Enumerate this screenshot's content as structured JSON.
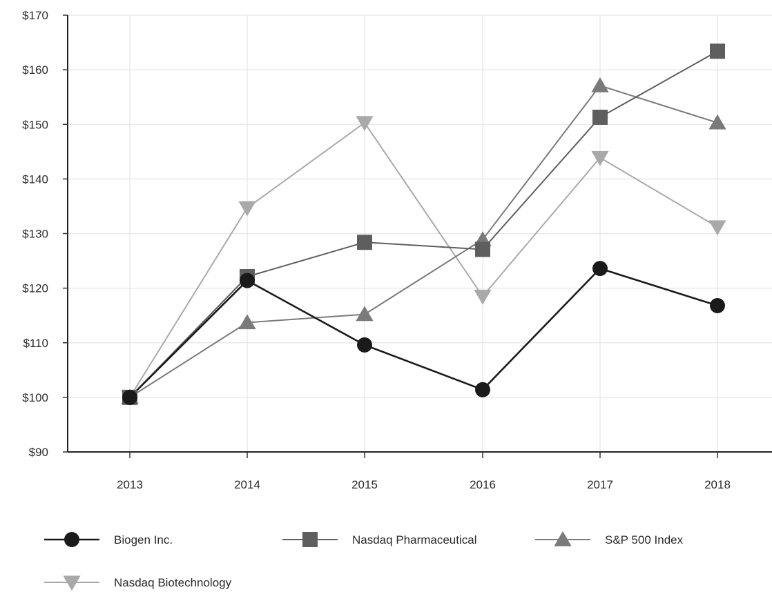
{
  "chart_data": {
    "type": "line",
    "title": "",
    "xlabel": "",
    "ylabel": "",
    "categories": [
      "2013",
      "2014",
      "2015",
      "2016",
      "2017",
      "2018"
    ],
    "ylim": [
      90,
      170
    ],
    "y_ticks": [
      90,
      100,
      110,
      120,
      130,
      140,
      150,
      160,
      170
    ],
    "y_tick_labels": [
      "$90",
      "$100",
      "$110",
      "$120",
      "$130",
      "$140",
      "$150",
      "$160",
      "$170"
    ],
    "grid": true,
    "legend_position": "bottom",
    "series": [
      {
        "name": "Biogen Inc.",
        "marker": "circle",
        "color": "#1a1a1a",
        "values": [
          100,
          121.4,
          109.6,
          101.4,
          123.6,
          116.8
        ]
      },
      {
        "name": "Nasdaq Pharmaceutical",
        "marker": "square",
        "color": "#5e5e5e",
        "values": [
          100,
          122.1,
          128.4,
          127.1,
          151.3,
          163.4
        ]
      },
      {
        "name": "S&P 500 Index",
        "marker": "triangle-up",
        "color": "#7a7a7a",
        "values": [
          100,
          113.7,
          115.2,
          128.9,
          157.1,
          150.3
        ]
      },
      {
        "name": "Nasdaq Biotechnology",
        "marker": "triangle-down",
        "color": "#a9a9a9",
        "values": [
          100,
          134.7,
          150.3,
          118.5,
          143.9,
          131.2
        ]
      }
    ]
  }
}
